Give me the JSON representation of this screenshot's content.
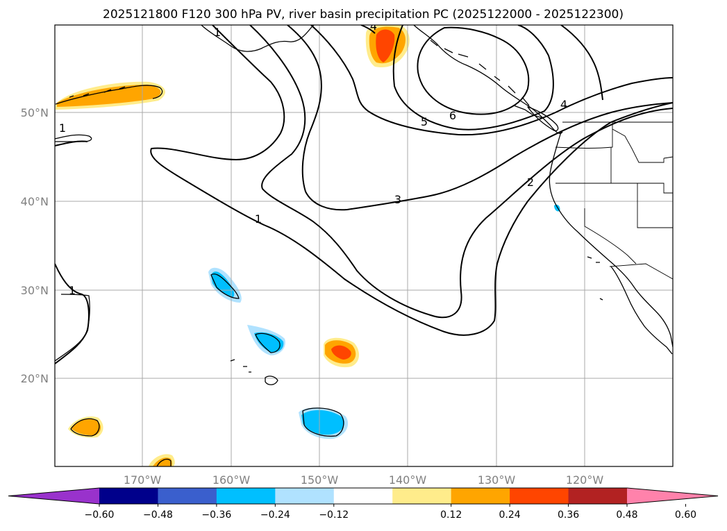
{
  "title": "2025121800 F120 300 hPa PV, river basin precipitation PC (2025122000 - 2025122300)",
  "lat_labels": [
    "50°N",
    "40°N",
    "30°N",
    "20°N"
  ],
  "lon_labels": [
    "170°W",
    "160°W",
    "150°W",
    "140°W",
    "130°W",
    "120°W"
  ],
  "contour_labels": [
    "1",
    "1",
    "1",
    "2",
    "3",
    "4",
    "4",
    "5",
    "6"
  ],
  "colorbar": {
    "ticks": [
      "−0.60",
      "−0.48",
      "−0.36",
      "−0.24",
      "−0.12",
      "0.12",
      "0.24",
      "0.36",
      "0.48",
      "0.60"
    ],
    "colors": [
      "#9932cc",
      "#00008b",
      "#3a5fcd",
      "#00bfff",
      "#b0e2ff",
      "#ffffff",
      "#ffec8b",
      "#ffa500",
      "#ff4500",
      "#b22222",
      "#ff82ab"
    ]
  }
}
